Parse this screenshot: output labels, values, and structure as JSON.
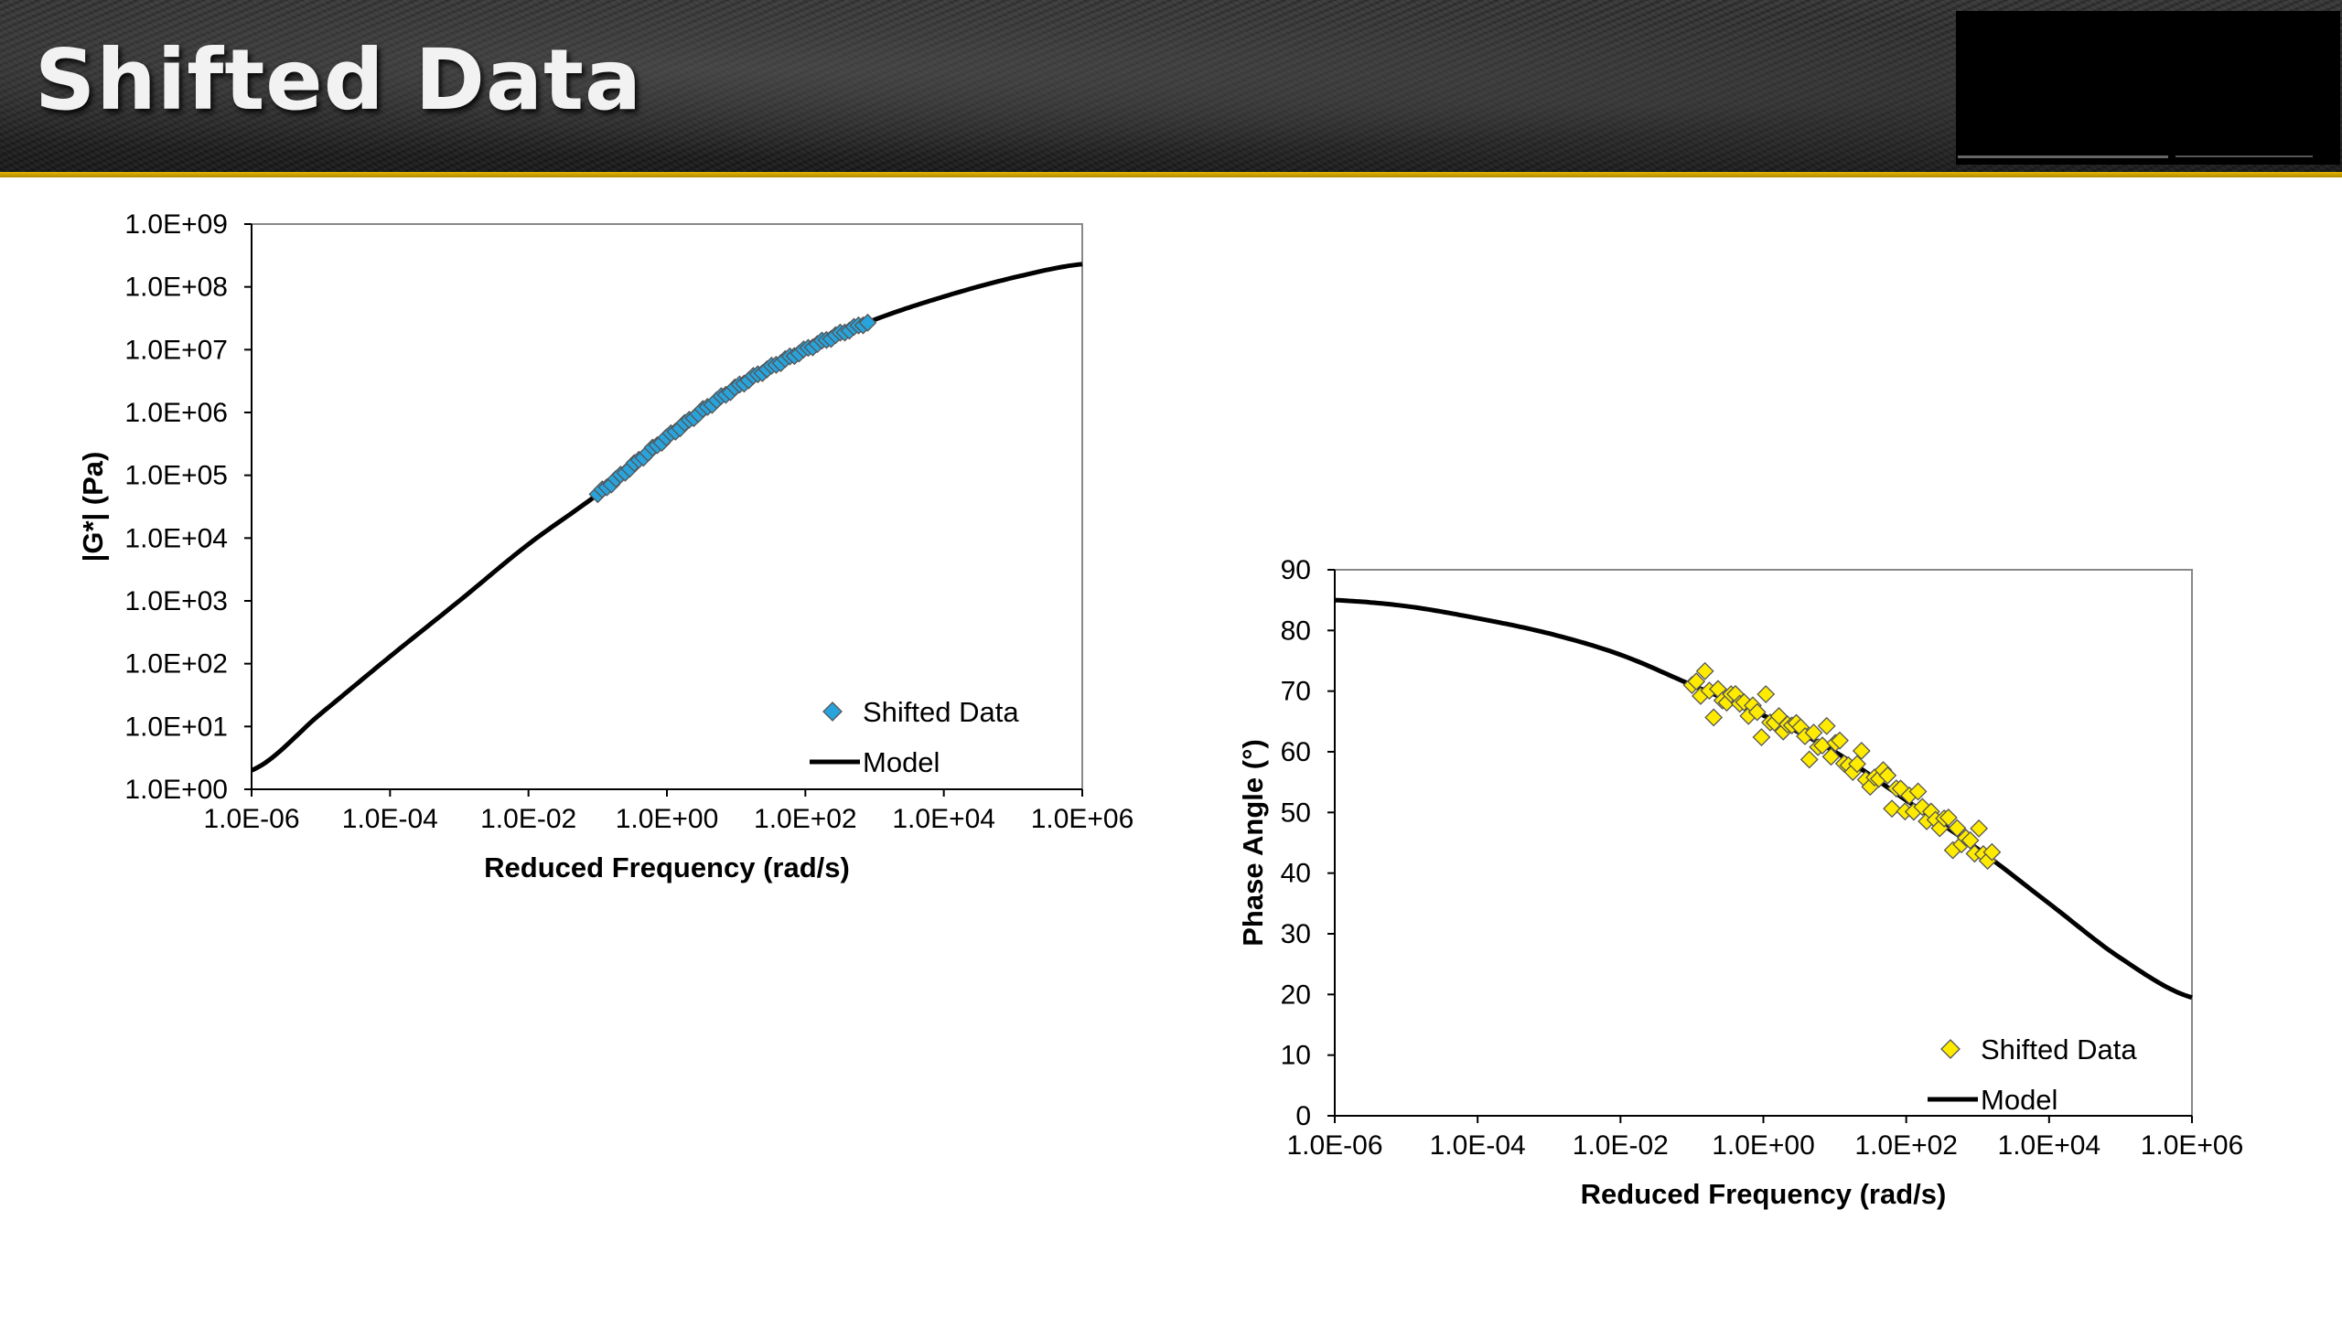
{
  "slide": {
    "title": "Shifted Data"
  },
  "colors": {
    "accent_gold": "#e3b400",
    "series_blue": "#29a3dc",
    "series_yellow": "#ffeb00",
    "model_line": "#000000"
  },
  "chart_data": [
    {
      "type": "scatter",
      "xlabel": "Reduced Frequency (rad/s)",
      "ylabel": "|G*| (Pa)",
      "xscale": "log",
      "yscale": "log",
      "xlim": [
        1e-06,
        1000000.0
      ],
      "ylim": [
        1,
        1000000000.0
      ],
      "xticks": [
        "1.0E-06",
        "1.0E-04",
        "1.0E-02",
        "1.0E+00",
        "1.0E+02",
        "1.0E+04",
        "1.0E+06"
      ],
      "yticks": [
        "1.0E+00",
        "1.0E+01",
        "1.0E+02",
        "1.0E+03",
        "1.0E+04",
        "1.0E+05",
        "1.0E+06",
        "1.0E+07",
        "1.0E+08",
        "1.0E+09"
      ],
      "legend_position": "bottom-right",
      "grid": false,
      "series": [
        {
          "name": "Shifted Data",
          "marker": "diamond",
          "color": "#29a3dc",
          "x_log10_range": [
            -1.0,
            2.9
          ],
          "y_log10_range": [
            4.75,
            7.45
          ],
          "n_points": 60
        },
        {
          "name": "Model",
          "marker": "line",
          "color": "#000000",
          "x": [
            1e-06,
            1e-05,
            0.0001,
            0.001,
            0.01,
            0.1,
            1,
            10,
            100,
            1000,
            10000.0,
            100000.0,
            1000000.0
          ],
          "y": [
            2.0,
            16,
            130,
            1000,
            8000,
            50000,
            400000,
            2500000,
            10000000,
            30000000,
            70000000,
            140000000,
            230000000
          ]
        }
      ]
    },
    {
      "type": "scatter",
      "xlabel": "Reduced Frequency (rad/s)",
      "ylabel": "Phase Angle (°)",
      "xscale": "log",
      "yscale": "linear",
      "xlim": [
        1e-06,
        1000000.0
      ],
      "ylim": [
        0,
        90
      ],
      "xticks": [
        "1.0E-06",
        "1.0E-04",
        "1.0E-02",
        "1.0E+00",
        "1.0E+02",
        "1.0E+04",
        "1.0E+06"
      ],
      "yticks": [
        "0",
        "10",
        "20",
        "30",
        "40",
        "50",
        "60",
        "70",
        "80",
        "90"
      ],
      "legend_position": "bottom-right",
      "grid": false,
      "series": [
        {
          "name": "Shifted Data",
          "marker": "diamond",
          "color": "#ffeb00",
          "x_log10_range": [
            -1.0,
            3.2
          ],
          "n_points": 70
        },
        {
          "name": "Model",
          "marker": "line",
          "color": "#000000",
          "x": [
            1e-06,
            1e-05,
            0.0001,
            0.001,
            0.01,
            0.1,
            1,
            10,
            100,
            1000,
            10000.0,
            100000.0,
            1000000.0
          ],
          "y": [
            85,
            84,
            82,
            79.5,
            76,
            71,
            66,
            60,
            52,
            44,
            35,
            26,
            19.5
          ]
        }
      ]
    }
  ]
}
